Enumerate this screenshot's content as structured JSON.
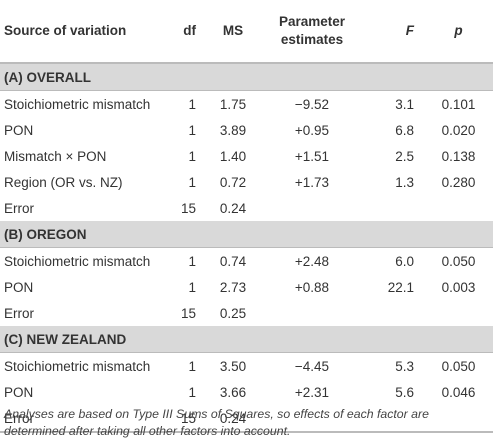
{
  "header": {
    "columns": [
      "Source of variation",
      "df",
      "MS",
      "Parameter estimates",
      "F",
      "p"
    ]
  },
  "sections": [
    {
      "title": "(A) OVERALL",
      "rows": [
        [
          "Stoichiometric mismatch",
          "1",
          "1.75",
          "−9.52",
          "3.1",
          "0.101"
        ],
        [
          "PON",
          "1",
          "3.89",
          "+0.95",
          "6.8",
          "0.020"
        ],
        [
          "Mismatch × PON",
          "1",
          "1.40",
          "+1.51",
          "2.5",
          "0.138"
        ],
        [
          "Region (OR vs. NZ)",
          "1",
          "0.72",
          "+1.73",
          "1.3",
          "0.280"
        ],
        [
          "Error",
          "15",
          "0.24",
          null,
          null,
          null
        ]
      ]
    },
    {
      "title": "(B) OREGON",
      "rows": [
        [
          "Stoichiometric mismatch",
          "1",
          "0.74",
          "+2.48",
          "6.0",
          "0.050"
        ],
        [
          "PON",
          "1",
          "2.73",
          "+0.88",
          "22.1",
          "0.003"
        ],
        [
          "Error",
          "15",
          "0.25",
          null,
          null,
          null
        ]
      ]
    },
    {
      "title": "(C) NEW ZEALAND",
      "rows": [
        [
          "Stoichiometric mismatch",
          "1",
          "3.50",
          "−4.45",
          "5.3",
          "0.050"
        ],
        [
          "PON",
          "1",
          "3.66",
          "+2.31",
          "5.6",
          "0.046"
        ],
        [
          "Error",
          "15",
          "0.24",
          null,
          null,
          null
        ]
      ]
    }
  ],
  "footnote": "Analyses are based on Type III Sums of Squares, so effects of each factor are determined after taking all other factors into account."
}
